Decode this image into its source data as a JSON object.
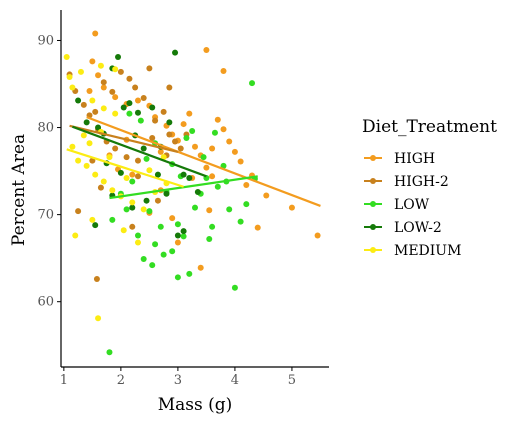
{
  "chart_data": {
    "type": "scatter",
    "xlabel": "Mass (g)",
    "ylabel": "Percent Area",
    "xlim": [
      0.95,
      5.65
    ],
    "ylim": [
      52.5,
      93.5
    ],
    "x_ticks": [
      "1",
      "2",
      "3",
      "4",
      "5"
    ],
    "y_ticks": [
      "60",
      "70",
      "80",
      "90"
    ],
    "grid": false,
    "legend": {
      "title": "Diet_Treatment",
      "position": "right"
    },
    "series": [
      {
        "name": "HIGH",
        "color": "#f39c1f",
        "trend": [
          [
            1.4,
            81.2
          ],
          [
            5.5,
            71.0
          ]
        ],
        "points": [
          [
            1.55,
            90.8
          ],
          [
            1.5,
            87.6
          ],
          [
            1.6,
            86.0
          ],
          [
            1.7,
            84.6
          ],
          [
            1.45,
            84.2
          ],
          [
            1.9,
            83.5
          ],
          [
            2.1,
            82.7
          ],
          [
            2.3,
            83.1
          ],
          [
            2.5,
            82.5
          ],
          [
            2.6,
            81.2
          ],
          [
            2.8,
            80.2
          ],
          [
            2.9,
            79.2
          ],
          [
            3.0,
            78.5
          ],
          [
            3.1,
            80.4
          ],
          [
            3.2,
            81.6
          ],
          [
            3.3,
            77.8
          ],
          [
            3.4,
            76.8
          ],
          [
            3.5,
            75.4
          ],
          [
            3.6,
            74.4
          ],
          [
            3.7,
            80.9
          ],
          [
            3.8,
            79.8
          ],
          [
            3.9,
            78.4
          ],
          [
            4.0,
            77.2
          ],
          [
            4.1,
            76.1
          ],
          [
            4.3,
            74.5
          ],
          [
            4.55,
            72.2
          ],
          [
            3.5,
            88.9
          ],
          [
            3.8,
            86.5
          ],
          [
            4.2,
            73.4
          ],
          [
            4.4,
            68.5
          ],
          [
            3.0,
            66.8
          ],
          [
            3.4,
            63.9
          ],
          [
            2.7,
            72.8
          ],
          [
            2.5,
            70.2
          ],
          [
            2.2,
            74.6
          ],
          [
            1.8,
            76.8
          ],
          [
            1.95,
            75.2
          ],
          [
            5.0,
            70.8
          ],
          [
            5.45,
            67.6
          ],
          [
            3.55,
            70.5
          ],
          [
            2.9,
            69.6
          ],
          [
            3.25,
            74.2
          ],
          [
            3.6,
            77.6
          ],
          [
            2.7,
            77.2
          ],
          [
            2.1,
            78.6
          ]
        ]
      },
      {
        "name": "HIGH-2",
        "color": "#c8811d",
        "trend": [
          [
            1.1,
            80.2
          ],
          [
            3.0,
            77.2
          ]
        ],
        "points": [
          [
            1.1,
            86.1
          ],
          [
            1.2,
            84.2
          ],
          [
            1.35,
            82.6
          ],
          [
            1.55,
            81.8
          ],
          [
            1.7,
            85.2
          ],
          [
            1.85,
            84.1
          ],
          [
            2.0,
            86.4
          ],
          [
            2.15,
            85.6
          ],
          [
            2.25,
            84.6
          ],
          [
            2.4,
            83.4
          ],
          [
            2.5,
            86.8
          ],
          [
            2.6,
            80.8
          ],
          [
            2.75,
            81.8
          ],
          [
            2.85,
            79.2
          ],
          [
            2.95,
            78.4
          ],
          [
            3.05,
            77.6
          ],
          [
            1.45,
            81.4
          ],
          [
            1.6,
            79.8
          ],
          [
            1.75,
            78.4
          ],
          [
            1.9,
            77.6
          ],
          [
            2.1,
            76.6
          ],
          [
            2.3,
            76.2
          ],
          [
            2.55,
            78.8
          ],
          [
            2.8,
            76.8
          ],
          [
            3.15,
            79.2
          ],
          [
            2.3,
            74.4
          ],
          [
            1.65,
            73.1
          ],
          [
            1.58,
            62.6
          ],
          [
            1.25,
            70.4
          ],
          [
            2.0,
            72.2
          ],
          [
            2.65,
            71.6
          ],
          [
            1.5,
            76.2
          ],
          [
            2.85,
            84.6
          ],
          [
            2.2,
            68.6
          ]
        ]
      },
      {
        "name": "LOW",
        "color": "#33dd22",
        "trend": [
          [
            1.8,
            71.9
          ],
          [
            4.4,
            74.4
          ]
        ],
        "points": [
          [
            1.8,
            54.2
          ],
          [
            1.85,
            69.4
          ],
          [
            2.0,
            72.4
          ],
          [
            2.1,
            70.6
          ],
          [
            2.2,
            73.8
          ],
          [
            2.3,
            67.6
          ],
          [
            2.4,
            64.9
          ],
          [
            2.5,
            70.4
          ],
          [
            2.6,
            66.6
          ],
          [
            2.7,
            68.6
          ],
          [
            2.8,
            72.6
          ],
          [
            2.9,
            65.8
          ],
          [
            3.0,
            68.9
          ],
          [
            3.1,
            67.5
          ],
          [
            3.2,
            63.2
          ],
          [
            3.3,
            70.8
          ],
          [
            3.4,
            72.4
          ],
          [
            3.5,
            74.2
          ],
          [
            3.6,
            68.6
          ],
          [
            3.7,
            73.2
          ],
          [
            3.8,
            75.6
          ],
          [
            3.9,
            70.6
          ],
          [
            4.0,
            61.6
          ],
          [
            4.1,
            69.2
          ],
          [
            4.2,
            71.2
          ],
          [
            4.3,
            85.1
          ],
          [
            4.35,
            74.1
          ],
          [
            2.6,
            78.2
          ],
          [
            2.9,
            75.8
          ],
          [
            3.05,
            74.4
          ],
          [
            3.15,
            78.8
          ],
          [
            3.25,
            79.6
          ],
          [
            3.45,
            76.6
          ],
          [
            3.65,
            79.4
          ],
          [
            3.85,
            73.8
          ],
          [
            2.45,
            76.4
          ],
          [
            2.15,
            81.6
          ],
          [
            2.35,
            80.8
          ],
          [
            2.75,
            65.4
          ],
          [
            3.0,
            62.8
          ],
          [
            2.55,
            64.2
          ],
          [
            3.55,
            67.2
          ]
        ]
      },
      {
        "name": "LOW-2",
        "color": "#157a09",
        "trend": [
          [
            1.15,
            80.1
          ],
          [
            3.5,
            74.4
          ]
        ],
        "points": [
          [
            1.25,
            83.1
          ],
          [
            1.4,
            80.6
          ],
          [
            1.6,
            80.0
          ],
          [
            1.7,
            79.3
          ],
          [
            1.85,
            86.8
          ],
          [
            1.95,
            88.1
          ],
          [
            2.05,
            82.3
          ],
          [
            2.15,
            82.8
          ],
          [
            2.3,
            81.7
          ],
          [
            2.4,
            77.6
          ],
          [
            2.55,
            82.3
          ],
          [
            2.7,
            77.8
          ],
          [
            2.85,
            80.6
          ],
          [
            2.95,
            88.6
          ],
          [
            3.1,
            74.6
          ],
          [
            3.2,
            74.2
          ],
          [
            3.35,
            72.6
          ],
          [
            1.85,
            72.2
          ],
          [
            2.0,
            74.8
          ],
          [
            2.45,
            71.6
          ],
          [
            2.65,
            74.6
          ],
          [
            2.8,
            72.4
          ],
          [
            3.1,
            68.1
          ],
          [
            2.2,
            70.8
          ],
          [
            1.55,
            68.8
          ],
          [
            3.0,
            67.6
          ],
          [
            1.75,
            75.9
          ],
          [
            2.25,
            79.1
          ]
        ]
      },
      {
        "name": "MEDIUM",
        "color": "#fcec13",
        "trend": [
          [
            1.05,
            77.5
          ],
          [
            3.1,
            73.2
          ]
        ],
        "points": [
          [
            1.05,
            88.1
          ],
          [
            1.1,
            85.8
          ],
          [
            1.15,
            84.6
          ],
          [
            1.3,
            86.4
          ],
          [
            1.5,
            83.1
          ],
          [
            1.7,
            82.2
          ],
          [
            1.9,
            81.6
          ],
          [
            1.15,
            77.8
          ],
          [
            1.25,
            76.2
          ],
          [
            1.4,
            75.6
          ],
          [
            1.55,
            74.6
          ],
          [
            1.7,
            73.8
          ],
          [
            1.85,
            72.8
          ],
          [
            2.0,
            72.1
          ],
          [
            2.2,
            71.4
          ],
          [
            2.4,
            70.6
          ],
          [
            2.6,
            72.6
          ],
          [
            2.8,
            73.6
          ],
          [
            1.2,
            67.6
          ],
          [
            1.5,
            69.4
          ],
          [
            1.6,
            58.1
          ],
          [
            2.05,
            68.2
          ],
          [
            2.3,
            66.8
          ],
          [
            1.35,
            79.1
          ],
          [
            1.65,
            79.5
          ],
          [
            1.45,
            78.2
          ],
          [
            2.75,
            76.6
          ],
          [
            2.5,
            75.1
          ],
          [
            1.8,
            76.6
          ],
          [
            2.1,
            74.2
          ],
          [
            1.9,
            86.7
          ],
          [
            1.65,
            87.1
          ]
        ]
      }
    ]
  }
}
